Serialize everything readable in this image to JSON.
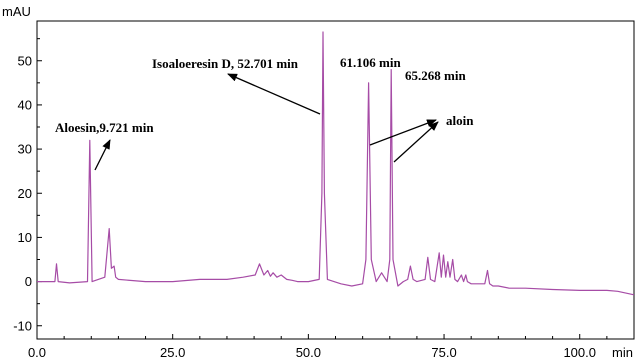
{
  "chart_data": {
    "type": "line",
    "title": "",
    "xlabel": "min",
    "ylabel": "mAU",
    "xlim": [
      0,
      110
    ],
    "ylim": [
      -13,
      59
    ],
    "grid": false,
    "legend": "none",
    "x_ticks": [
      {
        "value": 0,
        "label": "0.0"
      },
      {
        "value": 25,
        "label": "25.0"
      },
      {
        "value": 50,
        "label": "50.0"
      },
      {
        "value": 75,
        "label": "75.0"
      },
      {
        "value": 100,
        "label": "100.0"
      }
    ],
    "y_ticks": [
      {
        "value": -10,
        "label": "-10"
      },
      {
        "value": 0,
        "label": "0"
      },
      {
        "value": 10,
        "label": "10"
      },
      {
        "value": 20,
        "label": "20"
      },
      {
        "value": 30,
        "label": "30"
      },
      {
        "value": 40,
        "label": "40"
      },
      {
        "value": 50,
        "label": "50"
      }
    ],
    "series": [
      {
        "color": "#a64ca6",
        "x": [
          0,
          3.3,
          3.6,
          3.9,
          6,
          9.3,
          9.721,
          10.15,
          12.5,
          13.3,
          13.7,
          14.2,
          14.5,
          15,
          20,
          25,
          30,
          35,
          38,
          40.2,
          41,
          41.8,
          42.5,
          43,
          43.5,
          44.2,
          45,
          46,
          47,
          48,
          50,
          52.0,
          52.5,
          52.701,
          52.95,
          53.5,
          56,
          58,
          60,
          60.6,
          61.106,
          61.6,
          62.5,
          63.5,
          64.5,
          65.0,
          65.268,
          65.6,
          66.5,
          67.5,
          68.3,
          68.8,
          69.3,
          70,
          71.5,
          72,
          72.5,
          73.3,
          74.1,
          74.5,
          74.9,
          75.3,
          75.7,
          76.1,
          76.6,
          77,
          77.5,
          78.2,
          78.6,
          79,
          79.3,
          80,
          81,
          82.5,
          83,
          83.4,
          84,
          85,
          87,
          90,
          95,
          100,
          105,
          107,
          110
        ],
        "values": [
          0,
          0,
          4,
          0,
          -0.3,
          0,
          32,
          0,
          1,
          12,
          3,
          3.5,
          1,
          0.5,
          0,
          0,
          0.5,
          0.5,
          1,
          1.5,
          4,
          1.5,
          2.5,
          1.2,
          2,
          1,
          1.5,
          0.5,
          0.3,
          0,
          0,
          0.5,
          20,
          56.5,
          20,
          0.5,
          -0.5,
          -1,
          -0.5,
          5,
          45,
          5,
          0,
          2,
          0,
          5,
          48,
          5,
          -1,
          0,
          0.5,
          3.5,
          0.5,
          0,
          0.5,
          5.5,
          0.5,
          0,
          6.5,
          1,
          6,
          1,
          4.5,
          1,
          5,
          0.5,
          0,
          1.5,
          0,
          1.5,
          0,
          -0.5,
          -0.5,
          -0.5,
          2.5,
          -0.5,
          -1,
          -1,
          -1.5,
          -1.5,
          -1.8,
          -2,
          -2,
          -2.2,
          -3
        ]
      }
    ],
    "annotations": [
      {
        "text": "Aloesin,9.721 min"
      },
      {
        "text": "Isoaloeresin D, 52.701 min"
      },
      {
        "text": "61.106 min"
      },
      {
        "text": "65.268 min"
      },
      {
        "text": "aloin"
      }
    ]
  }
}
